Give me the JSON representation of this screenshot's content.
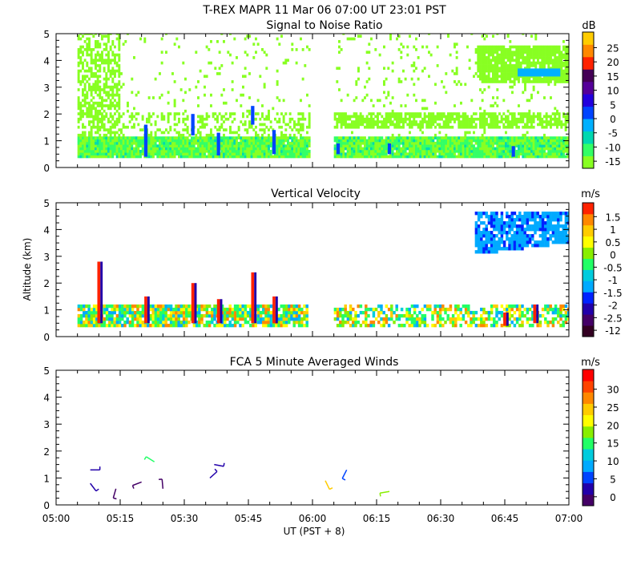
{
  "figure": {
    "title": "T-REX   MAPR 11 Mar 06   07:00 UT   23:01   PST",
    "xlabel": "UT  (PST + 8)",
    "x_ticks": [
      "05:00",
      "05:15",
      "05:30",
      "05:45",
      "06:00",
      "06:15",
      "06:30",
      "06:45",
      "07:00"
    ]
  },
  "chart_data": [
    {
      "type": "heatmap",
      "title": "Signal to Noise Ratio",
      "xlabel": "UT  (PST + 8)",
      "ylabel": "",
      "xlim": [
        "05:00",
        "07:00"
      ],
      "ylim": [
        0,
        5
      ],
      "y_ticks": [
        "0",
        "1",
        "2",
        "3",
        "4",
        "5"
      ],
      "colorbar": {
        "unit": "dB",
        "labels": [
          "-15",
          "-10",
          "-5",
          "0",
          "5",
          "10",
          "15",
          "20",
          "25"
        ],
        "colors": [
          "#88ff22",
          "#33ff66",
          "#00d8b0",
          "#00b0ff",
          "#0044ff",
          "#2200dd",
          "#550099",
          "#440055",
          "#ff2200",
          "#ff8800",
          "#ffcc00"
        ]
      },
      "data_gap": [
        "05:59",
        "06:05"
      ],
      "features": [
        {
          "name": "near-surface layer",
          "altitude_km": [
            0.3,
            1.1
          ],
          "snr_db": [
            -15,
            -5
          ]
        },
        {
          "name": "elevated layer",
          "start": "06:05",
          "end": "07:00",
          "altitude_km": [
            1.4,
            2.0
          ],
          "snr_db": [
            -15,
            -5
          ]
        },
        {
          "name": "upper layer",
          "start": "06:38",
          "end": "07:00",
          "altitude_km": [
            3.2,
            4.4
          ],
          "snr_db": [
            -15,
            -5
          ]
        }
      ]
    },
    {
      "type": "heatmap",
      "title": "Vertical Velocity",
      "xlabel": "UT  (PST + 8)",
      "ylabel": "Altitude (km)",
      "xlim": [
        "05:00",
        "07:00"
      ],
      "ylim": [
        0,
        5
      ],
      "y_ticks": [
        "0",
        "1",
        "2",
        "3",
        "4",
        "5"
      ],
      "colorbar": {
        "unit": "m/s",
        "labels": [
          "-12",
          "-2.5",
          "-2",
          "-1.5",
          "-1",
          "-0.5",
          "0",
          "0.5",
          "1",
          "1.5"
        ],
        "colors": [
          "#330022",
          "#440066",
          "#2200aa",
          "#0022ff",
          "#00aaff",
          "#00ccdd",
          "#22ff66",
          "#88ee00",
          "#ffff00",
          "#ffcc00",
          "#ff8800",
          "#ff2200"
        ]
      },
      "features": [
        {
          "name": "low-level velocities",
          "altitude_km": [
            0.3,
            1.1
          ],
          "velocity_ms": [
            -2.5,
            1.5
          ]
        },
        {
          "name": "upper downdraft region",
          "start": "06:38",
          "end": "07:00",
          "altitude_km": [
            3.2,
            4.6
          ],
          "velocity_ms": [
            -1.5,
            -0.5
          ]
        }
      ]
    },
    {
      "type": "scatter",
      "title": "FCA 5 Minute Averaged Winds",
      "xlabel": "UT  (PST + 8)",
      "ylabel": "",
      "xlim": [
        "05:00",
        "07:00"
      ],
      "ylim": [
        0,
        5
      ],
      "y_ticks": [
        "0",
        "1",
        "2",
        "3",
        "4",
        "5"
      ],
      "colorbar": {
        "unit": "m/s",
        "labels": [
          "0",
          "5",
          "10",
          "15",
          "20",
          "25",
          "30"
        ],
        "colors": [
          "#440066",
          "#2200aa",
          "#0044ff",
          "#00aaff",
          "#00ccdd",
          "#22ff66",
          "#88ee00",
          "#ffff00",
          "#ffcc00",
          "#ff8800",
          "#ff4400",
          "#ff0000"
        ]
      },
      "barbs": [
        {
          "time": "05:08",
          "altitude_km": 1.3,
          "speed_ms": 3
        },
        {
          "time": "05:08",
          "altitude_km": 0.8,
          "speed_ms": 3
        },
        {
          "time": "05:14",
          "altitude_km": 0.6,
          "speed_ms": 2
        },
        {
          "time": "05:20",
          "altitude_km": 0.85,
          "speed_ms": 2
        },
        {
          "time": "05:23",
          "altitude_km": 1.6,
          "speed_ms": 13
        },
        {
          "time": "05:25",
          "altitude_km": 0.6,
          "speed_ms": 2
        },
        {
          "time": "05:36",
          "altitude_km": 1.0,
          "speed_ms": 3
        },
        {
          "time": "05:37",
          "altitude_km": 1.5,
          "speed_ms": 3
        },
        {
          "time": "06:03",
          "altitude_km": 0.9,
          "speed_ms": 20
        },
        {
          "time": "06:08",
          "altitude_km": 1.3,
          "speed_ms": 5
        },
        {
          "time": "06:18",
          "altitude_km": 0.5,
          "speed_ms": 16
        }
      ]
    }
  ]
}
